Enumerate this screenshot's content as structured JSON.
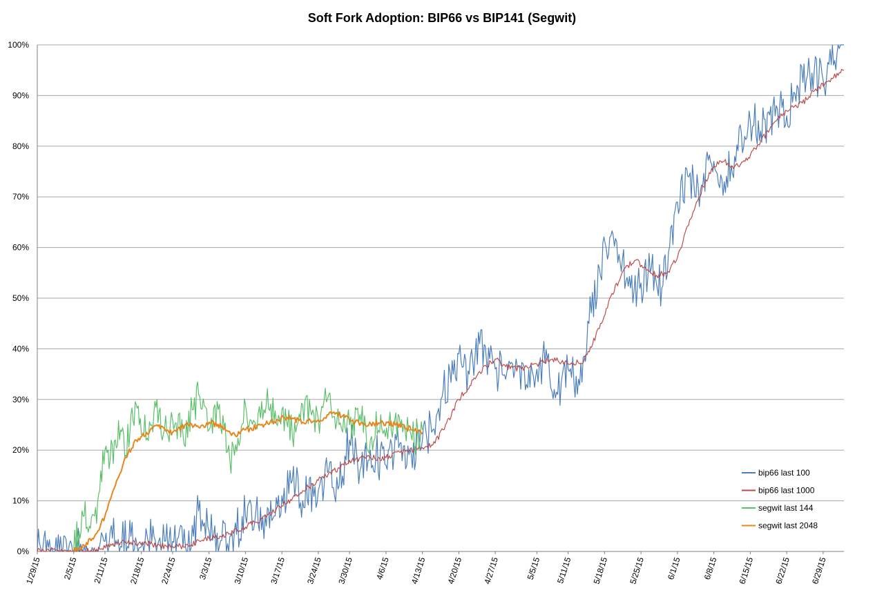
{
  "chart_data": {
    "type": "line",
    "title": "Soft Fork Adoption: BIP66 vs BIP141 (Segwit)",
    "xlabel": "",
    "ylabel": "",
    "ylim": [
      0,
      100
    ],
    "grid": "horizontal",
    "legend_position": "bottom-right",
    "y_ticks": [
      "0%",
      "10%",
      "20%",
      "30%",
      "40%",
      "50%",
      "60%",
      "70%",
      "80%",
      "90%",
      "100%"
    ],
    "x_ticks": [
      "1/29/15",
      "2/5/15",
      "2/11/15",
      "2/18/15",
      "2/24/15",
      "3/3/15",
      "3/10/15",
      "3/17/15",
      "3/24/15",
      "3/30/15",
      "4/6/15",
      "4/13/15",
      "4/20/15",
      "4/27/15",
      "5/5/15",
      "5/11/15",
      "5/18/15",
      "5/25/15",
      "6/1/15",
      "6/8/15",
      "6/15/15",
      "6/22/15",
      "6/29/15"
    ],
    "x_range": [
      "1/29/15",
      "7/3/15"
    ],
    "series": [
      {
        "name": "bip66 last 100",
        "color": "#4a7ebb",
        "points": [
          [
            "1/29/15",
            0
          ],
          [
            "2/5/15",
            0
          ],
          [
            "2/7/15",
            1
          ],
          [
            "2/9/15",
            0
          ],
          [
            "2/11/15",
            2
          ],
          [
            "2/12/15",
            4
          ],
          [
            "2/14/15",
            1
          ],
          [
            "2/16/15",
            3
          ],
          [
            "2/18/15",
            1
          ],
          [
            "2/20/15",
            2
          ],
          [
            "2/22/15",
            1
          ],
          [
            "2/24/15",
            2
          ],
          [
            "2/26/15",
            1
          ],
          [
            "2/28/15",
            3
          ],
          [
            "3/1/15",
            8
          ],
          [
            "3/3/15",
            4
          ],
          [
            "3/5/15",
            1
          ],
          [
            "3/7/15",
            3
          ],
          [
            "3/10/15",
            7
          ],
          [
            "3/12/15",
            8
          ],
          [
            "3/14/15",
            5
          ],
          [
            "3/17/15",
            11
          ],
          [
            "3/19/15",
            14
          ],
          [
            "3/21/15",
            10
          ],
          [
            "3/24/15",
            12
          ],
          [
            "3/26/15",
            16
          ],
          [
            "3/28/15",
            13
          ],
          [
            "3/30/15",
            22
          ],
          [
            "4/1/15",
            16
          ],
          [
            "4/3/15",
            20
          ],
          [
            "4/6/15",
            17
          ],
          [
            "4/8/15",
            22
          ],
          [
            "4/10/15",
            17
          ],
          [
            "4/13/15",
            22
          ],
          [
            "4/15/15",
            24
          ],
          [
            "4/17/15",
            32
          ],
          [
            "4/20/15",
            39
          ],
          [
            "4/22/15",
            35
          ],
          [
            "4/24/15",
            41
          ],
          [
            "4/27/15",
            36
          ],
          [
            "4/29/15",
            34
          ],
          [
            "5/1/15",
            38
          ],
          [
            "5/3/15",
            33
          ],
          [
            "5/5/15",
            36
          ],
          [
            "5/7/15",
            38
          ],
          [
            "5/9/15",
            31
          ],
          [
            "5/11/15",
            36
          ],
          [
            "5/13/15",
            34
          ],
          [
            "5/15/15",
            45
          ],
          [
            "5/17/15",
            56
          ],
          [
            "5/19/15",
            62
          ],
          [
            "5/21/15",
            57
          ],
          [
            "5/23/15",
            52
          ],
          [
            "5/25/15",
            53
          ],
          [
            "5/27/15",
            56
          ],
          [
            "5/29/15",
            52
          ],
          [
            "6/1/15",
            69
          ],
          [
            "6/3/15",
            74
          ],
          [
            "6/5/15",
            72
          ],
          [
            "6/8/15",
            77
          ],
          [
            "6/10/15",
            73
          ],
          [
            "6/12/15",
            78
          ],
          [
            "6/15/15",
            85
          ],
          [
            "6/17/15",
            83
          ],
          [
            "6/20/15",
            88
          ],
          [
            "6/22/15",
            86
          ],
          [
            "6/24/15",
            92
          ],
          [
            "6/26/15",
            94
          ],
          [
            "6/29/15",
            93
          ],
          [
            "7/1/15",
            96
          ],
          [
            "7/3/15",
            100
          ]
        ]
      },
      {
        "name": "bip66 last 1000",
        "color": "#be4b48",
        "points": [
          [
            "1/29/15",
            0
          ],
          [
            "2/6/15",
            0
          ],
          [
            "2/10/15",
            0.5
          ],
          [
            "2/14/15",
            1.7
          ],
          [
            "2/16/15",
            1.8
          ],
          [
            "2/19/15",
            1.5
          ],
          [
            "2/21/15",
            1.2
          ],
          [
            "2/24/15",
            1
          ],
          [
            "2/27/15",
            1.2
          ],
          [
            "3/3/15",
            2.6
          ],
          [
            "3/7/15",
            3.5
          ],
          [
            "3/10/15",
            4.8
          ],
          [
            "3/14/15",
            6.8
          ],
          [
            "3/17/15",
            9
          ],
          [
            "3/21/15",
            12
          ],
          [
            "3/24/15",
            14
          ],
          [
            "3/28/15",
            16.5
          ],
          [
            "3/30/15",
            18
          ],
          [
            "4/3/15",
            18.5
          ],
          [
            "4/6/15",
            18.5
          ],
          [
            "4/10/15",
            20
          ],
          [
            "4/13/15",
            20.5
          ],
          [
            "4/15/15",
            21
          ],
          [
            "4/17/15",
            24
          ],
          [
            "4/20/15",
            30
          ],
          [
            "4/24/15",
            35.5
          ],
          [
            "4/27/15",
            38
          ],
          [
            "4/29/15",
            36.5
          ],
          [
            "5/2/15",
            36
          ],
          [
            "5/5/15",
            37
          ],
          [
            "5/8/15",
            38
          ],
          [
            "5/11/15",
            37
          ],
          [
            "5/14/15",
            37.5
          ],
          [
            "5/17/15",
            44
          ],
          [
            "5/19/15",
            50
          ],
          [
            "5/22/15",
            56
          ],
          [
            "5/24/15",
            57.5
          ],
          [
            "5/26/15",
            55.5
          ],
          [
            "5/28/15",
            54.5
          ],
          [
            "5/30/15",
            55
          ],
          [
            "6/1/15",
            58
          ],
          [
            "6/4/15",
            67
          ],
          [
            "6/6/15",
            72
          ],
          [
            "6/8/15",
            76
          ],
          [
            "6/10/15",
            77
          ],
          [
            "6/12/15",
            76
          ],
          [
            "6/14/15",
            77
          ],
          [
            "6/17/15",
            81
          ],
          [
            "6/20/15",
            85
          ],
          [
            "6/22/15",
            87
          ],
          [
            "6/25/15",
            88.5
          ],
          [
            "6/28/15",
            91.5
          ],
          [
            "7/1/15",
            93.5
          ],
          [
            "7/3/15",
            95
          ]
        ]
      },
      {
        "name": "segwit last 144",
        "color": "#5bbf6a",
        "points": [
          [
            "2/5/15",
            0
          ],
          [
            "2/6/15",
            4
          ],
          [
            "2/7/15",
            7
          ],
          [
            "2/8/15",
            5
          ],
          [
            "2/9/15",
            7
          ],
          [
            "2/10/15",
            12
          ],
          [
            "2/11/15",
            20
          ],
          [
            "2/12/15",
            18
          ],
          [
            "2/13/15",
            22
          ],
          [
            "2/14/15",
            24
          ],
          [
            "2/15/15",
            19
          ],
          [
            "2/16/15",
            27
          ],
          [
            "2/17/15",
            29
          ],
          [
            "2/18/15",
            23
          ],
          [
            "2/20/15",
            25
          ],
          [
            "2/21/15",
            30
          ],
          [
            "2/22/15",
            22
          ],
          [
            "2/24/15",
            26
          ],
          [
            "2/26/15",
            23
          ],
          [
            "2/28/15",
            28
          ],
          [
            "3/1/15",
            31
          ],
          [
            "3/3/15",
            24
          ],
          [
            "3/5/15",
            29
          ],
          [
            "3/7/15",
            18
          ],
          [
            "3/9/15",
            22
          ],
          [
            "3/10/15",
            29
          ],
          [
            "3/12/15",
            25
          ],
          [
            "3/14/15",
            29
          ],
          [
            "3/17/15",
            28
          ],
          [
            "3/19/15",
            23
          ],
          [
            "3/21/15",
            29
          ],
          [
            "3/24/15",
            26
          ],
          [
            "3/26/15",
            31
          ],
          [
            "3/28/15",
            25
          ],
          [
            "3/30/15",
            25
          ],
          [
            "4/1/15",
            27
          ],
          [
            "4/3/15",
            22
          ],
          [
            "4/5/15",
            27
          ],
          [
            "4/7/15",
            24
          ],
          [
            "4/9/15",
            26
          ],
          [
            "4/11/15",
            22
          ],
          [
            "4/13/15",
            24
          ]
        ]
      },
      {
        "name": "segwit last 2048",
        "color": "#e6861f",
        "points": [
          [
            "2/5/15",
            0
          ],
          [
            "2/7/15",
            1.2
          ],
          [
            "2/9/15",
            3
          ],
          [
            "2/11/15",
            7
          ],
          [
            "2/13/15",
            13
          ],
          [
            "2/15/15",
            18.5
          ],
          [
            "2/17/15",
            22
          ],
          [
            "2/19/15",
            23.5
          ],
          [
            "2/21/15",
            25
          ],
          [
            "2/24/15",
            23.5
          ],
          [
            "2/27/15",
            25
          ],
          [
            "3/1/15",
            24.5
          ],
          [
            "3/3/15",
            25.5
          ],
          [
            "3/6/15",
            24.5
          ],
          [
            "3/8/15",
            23
          ],
          [
            "3/10/15",
            24
          ],
          [
            "3/13/15",
            25
          ],
          [
            "3/16/15",
            26
          ],
          [
            "3/18/15",
            26.5
          ],
          [
            "3/21/15",
            25.5
          ],
          [
            "3/24/15",
            26
          ],
          [
            "3/27/15",
            27.5
          ],
          [
            "3/30/15",
            26
          ],
          [
            "4/2/15",
            25
          ],
          [
            "4/5/15",
            25.5
          ],
          [
            "4/8/15",
            25
          ],
          [
            "4/11/15",
            24
          ],
          [
            "4/13/15",
            23.5
          ]
        ]
      }
    ]
  }
}
